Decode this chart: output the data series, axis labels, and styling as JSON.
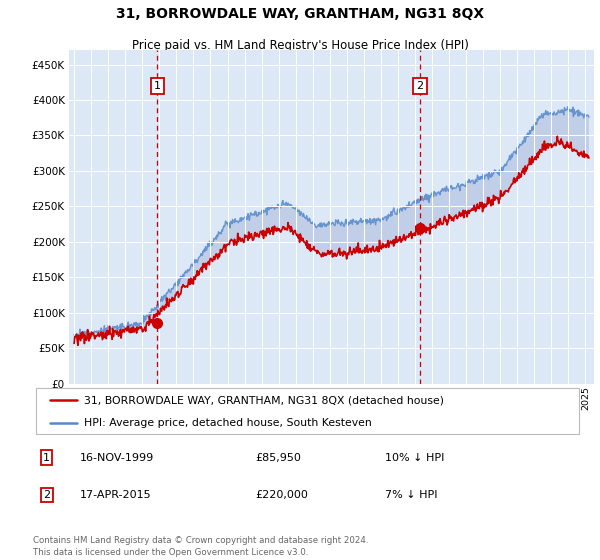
{
  "title": "31, BORROWDALE WAY, GRANTHAM, NG31 8QX",
  "subtitle": "Price paid vs. HM Land Registry's House Price Index (HPI)",
  "legend_line1": "31, BORROWDALE WAY, GRANTHAM, NG31 8QX (detached house)",
  "legend_line2": "HPI: Average price, detached house, South Kesteven",
  "annotation1_date": "16-NOV-1999",
  "annotation1_price": "£85,950",
  "annotation1_hpi": "10% ↓ HPI",
  "annotation2_date": "17-APR-2015",
  "annotation2_price": "£220,000",
  "annotation2_hpi": "7% ↓ HPI",
  "footnote": "Contains HM Land Registry data © Crown copyright and database right 2024.\nThis data is licensed under the Open Government Licence v3.0.",
  "red_color": "#cc0000",
  "blue_color": "#5588cc",
  "fill_blue": "#aabbdd",
  "background_color": "#dce8f5",
  "ylim": [
    0,
    470000
  ],
  "yticks": [
    0,
    50000,
    100000,
    150000,
    200000,
    250000,
    300000,
    350000,
    400000,
    450000
  ],
  "sale1_year": 1999.88,
  "sale1_value": 85950,
  "sale2_year": 2015.29,
  "sale2_value": 220000
}
